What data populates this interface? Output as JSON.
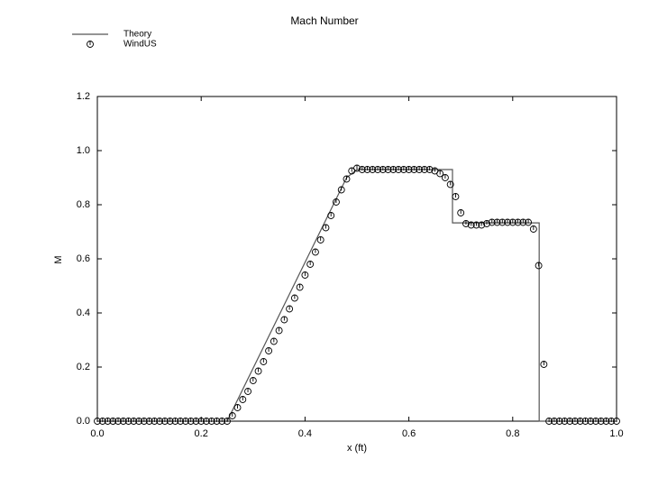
{
  "chart_data": {
    "type": "line",
    "title": "Mach Number",
    "x_label": "x (ft)",
    "y_label": "M",
    "xlim": [
      0,
      1
    ],
    "ylim": [
      0,
      1.2
    ],
    "xticks": [
      {
        "value": 0,
        "label": "0.0"
      },
      {
        "value": 0.2,
        "label": "0.2"
      },
      {
        "value": 0.4,
        "label": "0.4"
      },
      {
        "value": 0.6,
        "label": "0.6"
      },
      {
        "value": 0.8,
        "label": "0.8"
      },
      {
        "value": 1,
        "label": "1.0"
      }
    ],
    "yticks": [
      {
        "value": 0,
        "label": "0.0"
      },
      {
        "value": 0.2,
        "label": "0.2"
      },
      {
        "value": 0.4,
        "label": "0.4"
      },
      {
        "value": 0.6,
        "label": "0.6"
      },
      {
        "value": 0.8,
        "label": "0.8"
      },
      {
        "value": 1,
        "label": "1.0"
      },
      {
        "value": 1.2,
        "label": "1.2"
      }
    ],
    "legend": "top-left",
    "series": [
      {
        "name": "Theory",
        "color": "#555555",
        "marker": "none",
        "x": [
          0,
          0.25,
          0.48,
          0.5,
          0.684,
          0.684,
          0.851,
          0.851,
          1
        ],
        "values": [
          0,
          0,
          0.9,
          0.93,
          0.93,
          0.733,
          0.733,
          0,
          0
        ]
      },
      {
        "name": "WindUS",
        "color": "#000000",
        "marker": "circle",
        "x": [
          0,
          0.01,
          0.02,
          0.03,
          0.04,
          0.05,
          0.06,
          0.07,
          0.08,
          0.09,
          0.1,
          0.11,
          0.12,
          0.13,
          0.14,
          0.15,
          0.16,
          0.17,
          0.18,
          0.19,
          0.2,
          0.21,
          0.22,
          0.23,
          0.24,
          0.25,
          0.26,
          0.27,
          0.28,
          0.29,
          0.3,
          0.31,
          0.32,
          0.33,
          0.34,
          0.35,
          0.36,
          0.37,
          0.38,
          0.39,
          0.4,
          0.41,
          0.42,
          0.43,
          0.44,
          0.45,
          0.46,
          0.47,
          0.48,
          0.49,
          0.5,
          0.51,
          0.52,
          0.53,
          0.54,
          0.55,
          0.56,
          0.57,
          0.58,
          0.59,
          0.6,
          0.61,
          0.62,
          0.63,
          0.64,
          0.65,
          0.66,
          0.67,
          0.68,
          0.69,
          0.7,
          0.71,
          0.72,
          0.73,
          0.74,
          0.75,
          0.76,
          0.77,
          0.78,
          0.79,
          0.8,
          0.81,
          0.82,
          0.83,
          0.84,
          0.85,
          0.86,
          0.87,
          0.88,
          0.89,
          0.9,
          0.91,
          0.92,
          0.93,
          0.94,
          0.95,
          0.96,
          0.97,
          0.98,
          0.99,
          1
        ],
        "values": [
          0,
          0,
          0,
          0,
          0,
          0,
          0,
          0,
          0,
          0,
          0,
          0,
          0,
          0,
          0,
          0,
          0,
          0,
          0,
          0,
          0,
          0,
          0,
          0,
          0,
          0,
          0.02,
          0.05,
          0.08,
          0.11,
          0.15,
          0.185,
          0.22,
          0.26,
          0.295,
          0.335,
          0.375,
          0.415,
          0.455,
          0.495,
          0.54,
          0.58,
          0.625,
          0.67,
          0.715,
          0.76,
          0.81,
          0.855,
          0.895,
          0.925,
          0.935,
          0.93,
          0.93,
          0.93,
          0.93,
          0.93,
          0.93,
          0.93,
          0.93,
          0.93,
          0.93,
          0.93,
          0.93,
          0.93,
          0.93,
          0.925,
          0.915,
          0.9,
          0.875,
          0.83,
          0.77,
          0.73,
          0.725,
          0.725,
          0.725,
          0.73,
          0.735,
          0.735,
          0.735,
          0.735,
          0.735,
          0.735,
          0.735,
          0.735,
          0.71,
          0.575,
          0.21,
          0,
          0,
          0,
          0,
          0,
          0,
          0,
          0,
          0,
          0,
          0,
          0,
          0,
          0
        ]
      }
    ]
  }
}
